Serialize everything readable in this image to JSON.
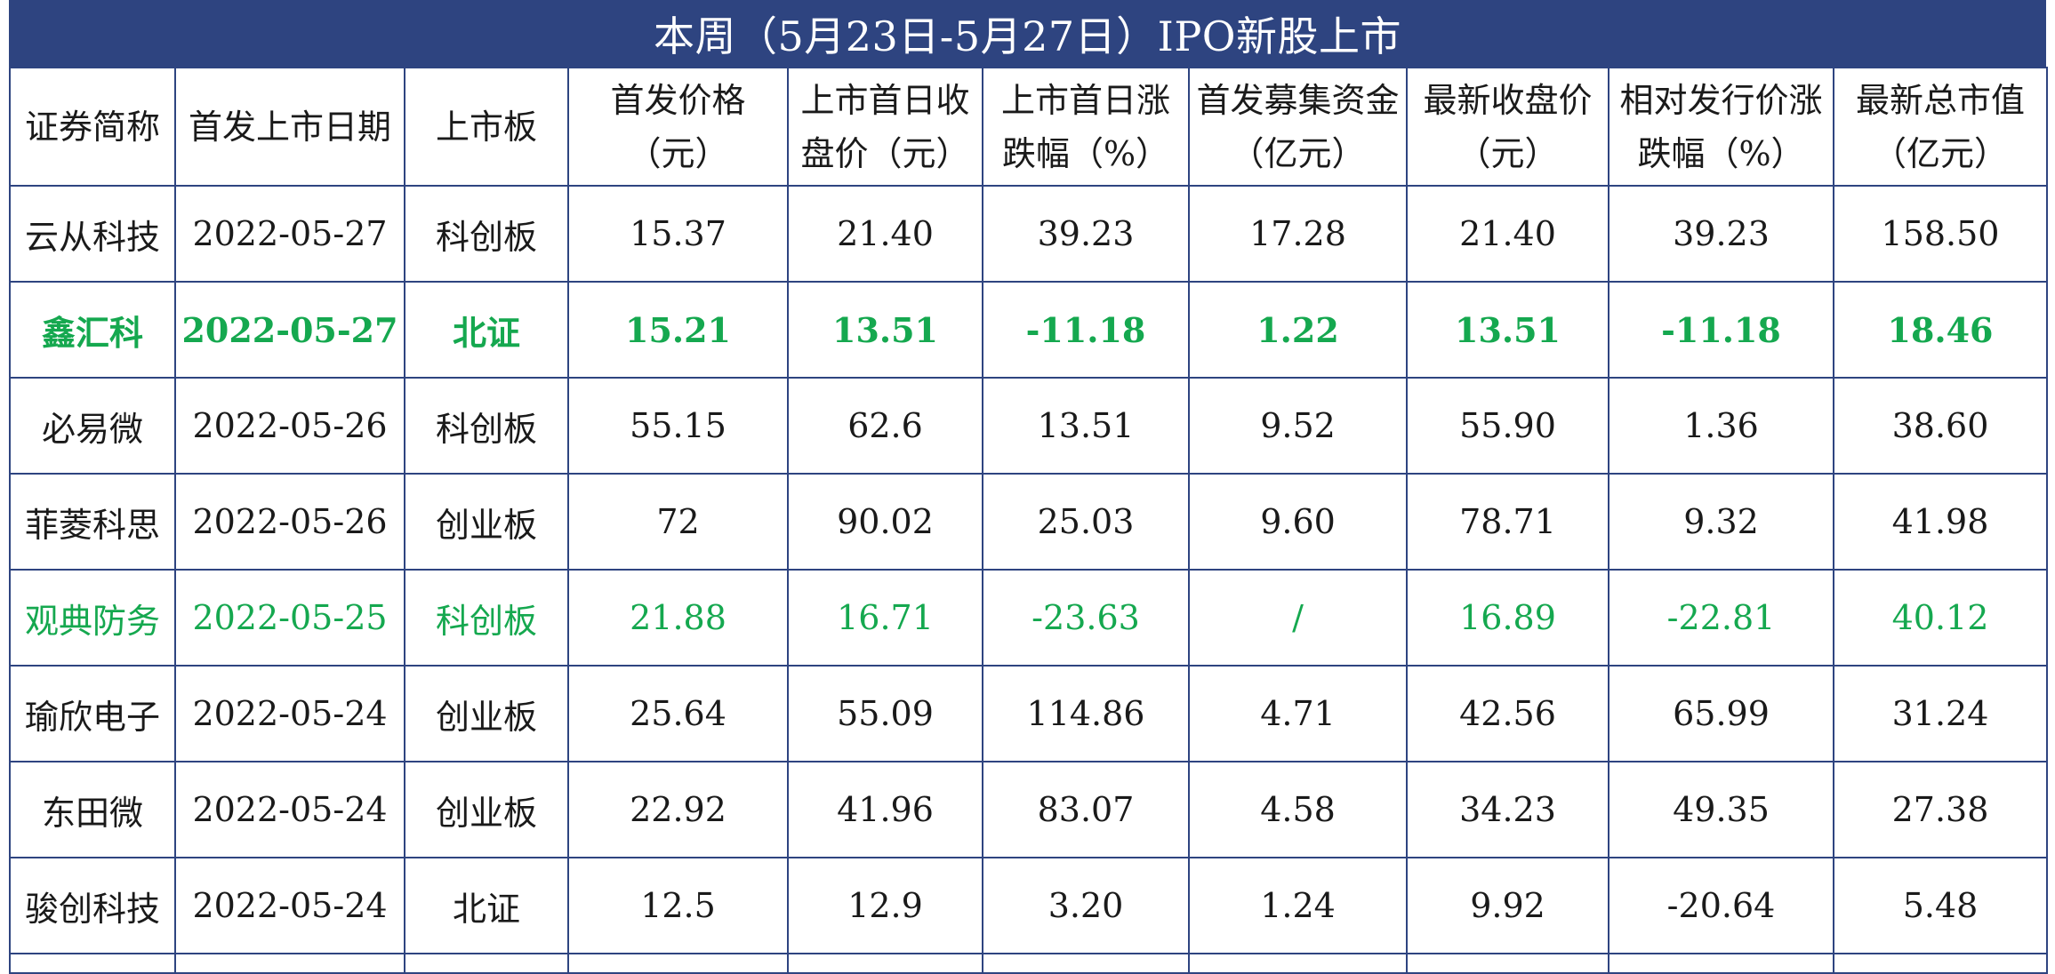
{
  "title": "本周（5月23日-5月27日）IPO新股上市",
  "colors": {
    "title_bg": "#2e4480",
    "border": "#2e4480",
    "highlight_green": "#15a84f",
    "text": "#1a1a1a"
  },
  "headers": [
    "证券简称",
    "首发上市日期",
    "上市板",
    "首发价格（元）",
    "上市首日收盘价（元）",
    "上市首日涨跌幅（%）",
    "首发募集资金（亿元）",
    "最新收盘价（元）",
    "相对发行价涨跌幅（%）",
    "最新总市值（亿元）"
  ],
  "rows": [
    [
      "云从科技",
      "2022-05-27",
      "科创板",
      "15.37",
      "21.40",
      "39.23",
      "17.28",
      "21.40",
      "39.23",
      "158.50"
    ],
    [
      "鑫汇科",
      "2022-05-27",
      "北证",
      "15.21",
      "13.51",
      "-11.18",
      "1.22",
      "13.51",
      "-11.18",
      "18.46"
    ],
    [
      "必易微",
      "2022-05-26",
      "科创板",
      "55.15",
      "62.6",
      "13.51",
      "9.52",
      "55.90",
      "1.36",
      "38.60"
    ],
    [
      "菲菱科思",
      "2022-05-26",
      "创业板",
      "72",
      "90.02",
      "25.03",
      "9.60",
      "78.71",
      "9.32",
      "41.98"
    ],
    [
      "观典防务",
      "2022-05-25",
      "科创板",
      "21.88",
      "16.71",
      "-23.63",
      "/",
      "16.89",
      "-22.81",
      "40.12"
    ],
    [
      "瑜欣电子",
      "2022-05-24",
      "创业板",
      "25.64",
      "55.09",
      "114.86",
      "4.71",
      "42.56",
      "65.99",
      "31.24"
    ],
    [
      "东田微",
      "2022-05-24",
      "创业板",
      "22.92",
      "41.96",
      "83.07",
      "4.58",
      "34.23",
      "49.35",
      "27.38"
    ],
    [
      "骏创科技",
      "2022-05-24",
      "北证",
      "12.5",
      "12.9",
      "3.20",
      "1.24",
      "9.92",
      "-20.64",
      "5.48"
    ]
  ]
}
